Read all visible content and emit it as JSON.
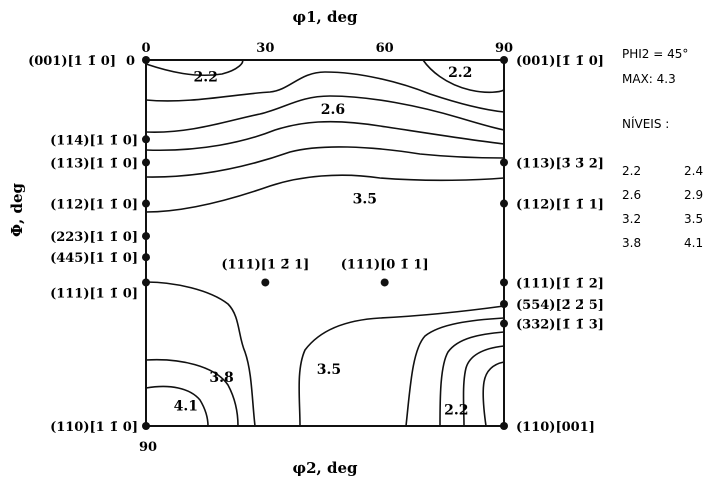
{
  "chart_data": {
    "type": "contour",
    "title_axis_top": "φ1, deg",
    "title_axis_bottom": "φ2, deg",
    "title_axis_left": "Φ, deg",
    "x_top_ticks": [
      "0",
      "30",
      "60",
      "90"
    ],
    "x_top_range": [
      0,
      90
    ],
    "y_left_top_tick": "0",
    "y_left_bottom_tick": "90",
    "section": "PHI2 = 45°",
    "max": "MAX: 4.3",
    "levels_title": "NÍVEIS :",
    "levels": [
      "2.2",
      "2.4",
      "2.6",
      "2.9",
      "3.2",
      "3.5",
      "3.8",
      "4.1"
    ],
    "contour_labels": [
      {
        "text": "2.2",
        "phi1": 15,
        "Phi": 4
      },
      {
        "text": "2.2",
        "phi1": 79,
        "Phi": 3
      },
      {
        "text": "2.6",
        "phi1": 47,
        "Phi": 12
      },
      {
        "text": "3.5",
        "phi1": 55,
        "Phi": 34
      },
      {
        "text": "3.8",
        "phi1": 19,
        "Phi": 78
      },
      {
        "text": "3.5",
        "phi1": 46,
        "Phi": 76
      },
      {
        "text": "4.1",
        "phi1": 10,
        "Phi": 85
      },
      {
        "text": "2.2",
        "phi1": 78,
        "Phi": 86
      }
    ],
    "left_orientations": [
      {
        "label": "(001)[1 1̄ 0]",
        "Phi": 0
      },
      {
        "label": "(114)[1 1̄ 0]",
        "Phi": 19.5
      },
      {
        "label": "(113)[1 1̄ 0]",
        "Phi": 25.2
      },
      {
        "label": "(112)[1 1̄ 0]",
        "Phi": 35.3
      },
      {
        "label": "(223)[1 1̄ 0]",
        "Phi": 43.3
      },
      {
        "label": "(445)[1 1̄ 0]",
        "Phi": 48.5
      },
      {
        "label": "(111)[1 1̄ 0]",
        "Phi": 54.7
      },
      {
        "label": "(110)[1 1̄ 0]",
        "Phi": 90
      }
    ],
    "right_orientations": [
      {
        "label": "(001)[1̄ 1̄ 0]",
        "Phi": 0
      },
      {
        "label": "(113)[3̄ 3̄ 2]",
        "Phi": 25.2
      },
      {
        "label": "(112)[1̄ 1̄ 1]",
        "Phi": 35.3
      },
      {
        "label": "(111)[1̄ 1̄ 2]",
        "Phi": 54.7
      },
      {
        "label": "(554)[2̄ 2̄ 5]",
        "Phi": 60
      },
      {
        "label": "(332)[1̄ 1̄ 3]",
        "Phi": 64.8
      },
      {
        "label": "(110)[001]",
        "Phi": 90
      }
    ],
    "interior_orientations": [
      {
        "label": "(111)[1 2̄ 1]",
        "phi1": 30,
        "Phi": 54.7
      },
      {
        "label": "(111)[0 1̄ 1]",
        "phi1": 60,
        "Phi": 54.7
      }
    ]
  }
}
